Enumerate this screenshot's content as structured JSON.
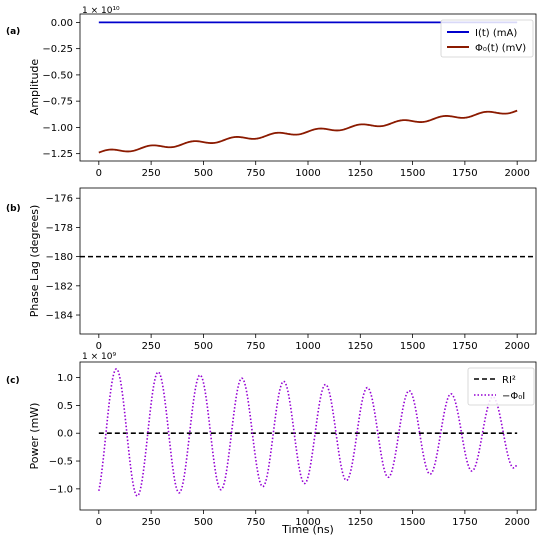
{
  "figure": {
    "panel_tags": [
      "(a)",
      "(b)",
      "(c)"
    ],
    "xlabel": "Time (ns)"
  },
  "chart_data": [
    {
      "type": "line",
      "panel": "(a)",
      "ylabel": "Amplitude",
      "multiplier": "1 × 10¹⁰",
      "xlim": [
        -90,
        2090
      ],
      "ylim": [
        -1.32,
        0.08
      ],
      "xticks": [
        0,
        250,
        500,
        750,
        1000,
        1250,
        1500,
        1750,
        2000
      ],
      "yticks": [
        -1.25,
        -1.0,
        -0.75,
        -0.5,
        -0.25,
        0.0
      ],
      "ytick_labels": [
        "−1.25",
        "−1.00",
        "−0.75",
        "−0.50",
        "−0.25",
        "0.00"
      ],
      "legend_position": "upper right",
      "series": [
        {
          "name": "I(t) (mA)",
          "color": "#0000cc",
          "style": "solid",
          "model": {
            "kind": "constant",
            "value": 0.0,
            "x_range": [
              0,
              2000
            ]
          }
        },
        {
          "name": "Φ₀(t) (mV)",
          "color": "#8b1a00",
          "style": "solid",
          "model": {
            "kind": "oscillating_trend",
            "x_range": [
              0,
              2000
            ],
            "start": -1.24,
            "end": -0.84,
            "amplitude": 0.018,
            "period": 200
          }
        }
      ]
    },
    {
      "type": "line",
      "panel": "(b)",
      "ylabel": "Phase Lag (degrees)",
      "xlim": [
        -90,
        2090
      ],
      "ylim": [
        -185.3,
        -175.3
      ],
      "xticks": [
        0,
        250,
        500,
        750,
        1000,
        1250,
        1500,
        1750,
        2000
      ],
      "yticks": [
        -184,
        -182,
        -180,
        -178,
        -176
      ],
      "ytick_labels": [
        "−184",
        "−182",
        "−180",
        "−178",
        "−176"
      ],
      "series": [
        {
          "name": "",
          "color": "#000000",
          "style": "dashed",
          "model": {
            "kind": "constant",
            "value": -180,
            "x_range": [
              -90,
              2090
            ]
          }
        }
      ]
    },
    {
      "type": "line",
      "panel": "(c)",
      "ylabel": "Power (mW)",
      "multiplier": "1 × 10⁹",
      "xlim": [
        -90,
        2090
      ],
      "ylim": [
        -1.38,
        1.28
      ],
      "xticks": [
        0,
        250,
        500,
        750,
        1000,
        1250,
        1500,
        1750,
        2000
      ],
      "yticks": [
        -1.0,
        -0.5,
        0.0,
        0.5,
        1.0
      ],
      "ytick_labels": [
        "−1.0",
        "−0.5",
        "0.0",
        "0.5",
        "1.0"
      ],
      "legend_position": "upper right",
      "series": [
        {
          "name": "RI²",
          "color": "#000000",
          "style": "dashed",
          "model": {
            "kind": "constant",
            "value": 0.0,
            "x_range": [
              0,
              2000
            ]
          }
        },
        {
          "name": "−Φ₀I",
          "color": "#9400d3",
          "style": "dotted",
          "model": {
            "kind": "damped_cosine",
            "x_range": [
              0,
              2000
            ],
            "amplitude_start": 1.18,
            "amplitude_end": 0.62,
            "period": 200,
            "phase_shift": 0.5
          }
        }
      ]
    }
  ]
}
